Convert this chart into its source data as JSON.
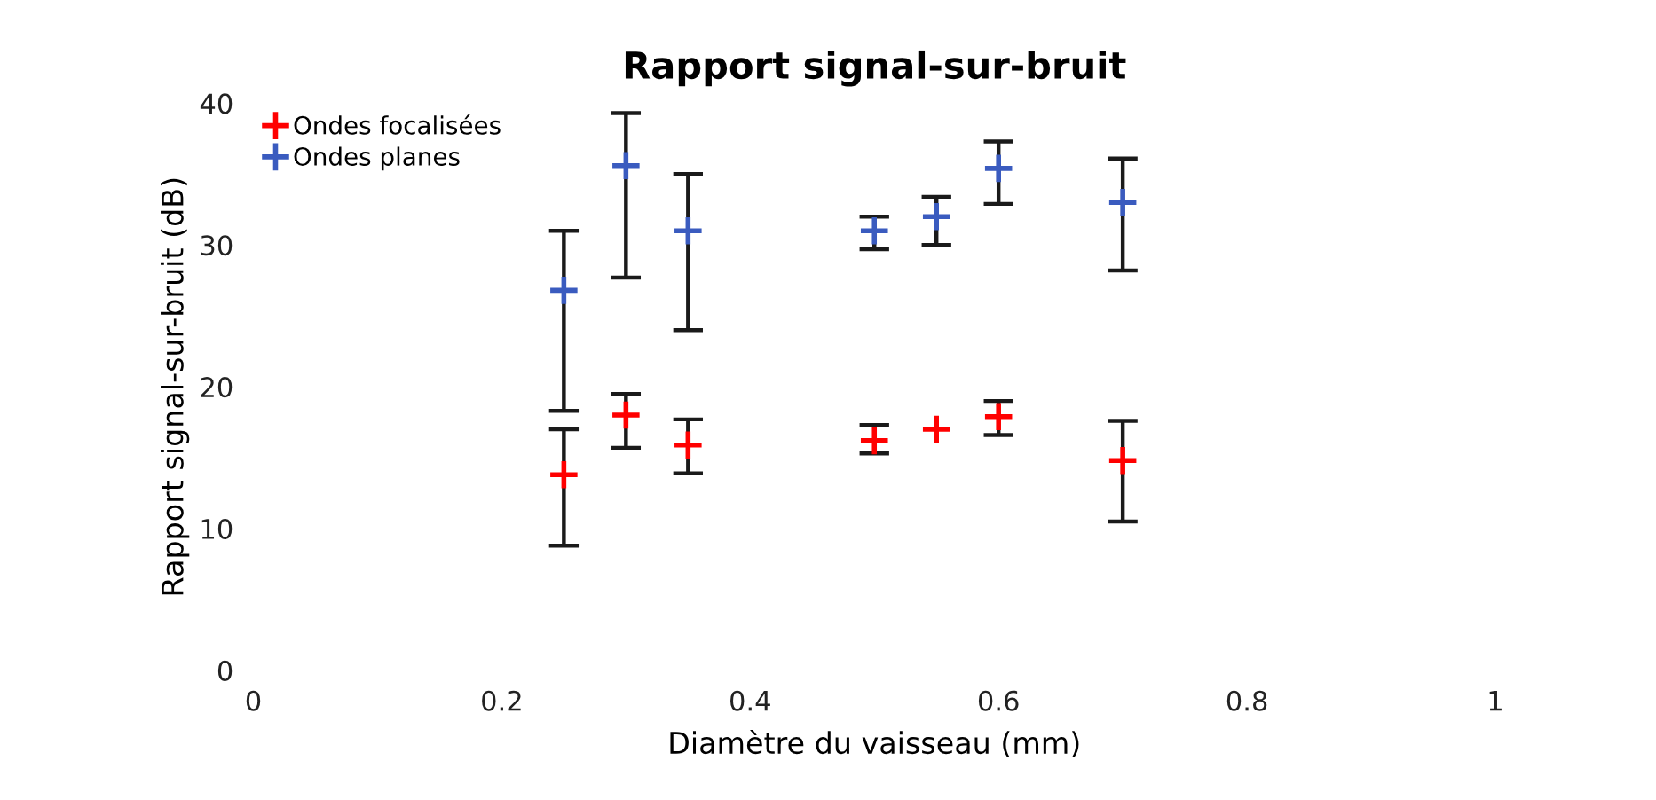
{
  "chart_data": {
    "type": "scatter",
    "title": "Rapport signal-sur-bruit",
    "xlabel": "Diamètre du vaisseau (mm)",
    "ylabel": "Rapport signal-sur-bruit (dB)",
    "x": [
      0.25,
      0.3,
      0.35,
      0.5,
      0.55,
      0.6,
      0.7
    ],
    "series": [
      {
        "name": "Ondes focalisées",
        "color": "#ff0000",
        "values": [
          13.8,
          18,
          15.9,
          16.2,
          17,
          17.9,
          14.8
        ],
        "errors": [
          [
            8.8,
            17
          ],
          [
            15.7,
            19.5
          ],
          [
            13.9,
            17.7
          ],
          [
            15.3,
            17.3
          ],
          null,
          [
            16.6,
            19
          ],
          [
            10.5,
            17.6
          ]
        ]
      },
      {
        "name": "Ondes planes",
        "color": "#3a5bbf",
        "values": [
          26.8,
          35.6,
          31,
          31,
          32,
          35.4,
          33
        ],
        "errors": [
          [
            18.3,
            31
          ],
          [
            27.7,
            39.3
          ],
          [
            24,
            35
          ],
          [
            29.7,
            32
          ],
          [
            30,
            33.4
          ],
          [
            32.9,
            37.3
          ],
          [
            28.2,
            36.1
          ]
        ]
      }
    ],
    "xlim": [
      0,
      1
    ],
    "ylim": [
      0,
      40
    ],
    "xticks": [
      0,
      0.2,
      0.4,
      0.6,
      0.8,
      1
    ],
    "yticks": [
      0,
      10,
      20,
      30,
      40
    ],
    "marker": "cross",
    "legend": "top left",
    "grid": false
  }
}
